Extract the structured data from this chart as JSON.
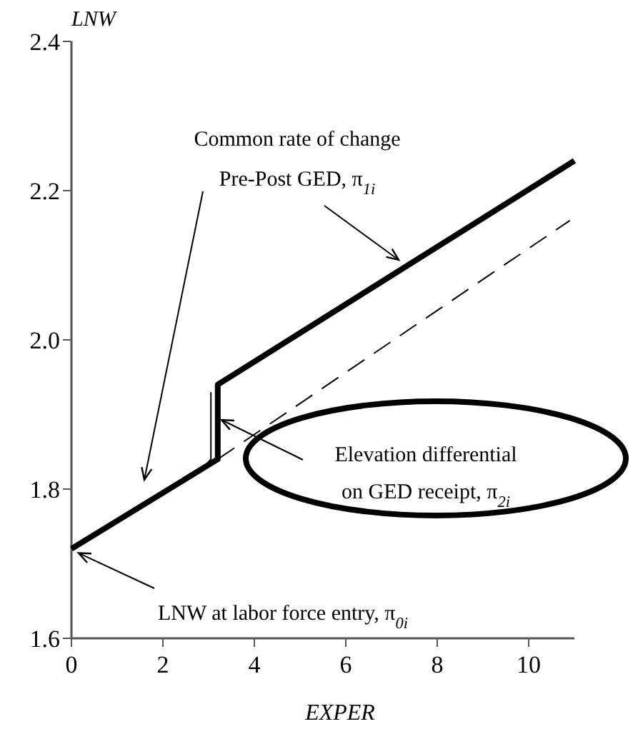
{
  "chart_data": {
    "type": "line",
    "xlabel": "EXPER",
    "ylabel": "LNW",
    "xlim": [
      0,
      11
    ],
    "ylim": [
      1.6,
      2.4
    ],
    "xticks": [
      0,
      2,
      4,
      6,
      8,
      10
    ],
    "yticks": [
      1.6,
      1.8,
      {
        "value": 2.0,
        "label": "2.0"
      },
      2.2,
      2.4
    ],
    "grid": false,
    "marker": "none",
    "series": [
      {
        "color": "#000000",
        "x": [
          0,
          3.2,
          3.2,
          11
        ],
        "values": [
          1.72,
          1.84,
          1.94,
          2.24
        ]
      },
      {
        "color": "#000000",
        "x": [
          2.9,
          3.05,
          3.05
        ],
        "values": [
          1.83,
          1.84,
          1.93
        ]
      },
      {
        "color": "#000000",
        "line_style": "dashed",
        "x": [
          3.2,
          10.9
        ],
        "values": [
          1.84,
          2.16
        ]
      }
    ],
    "annotations": [
      "Common rate of change",
      "Pre-Post GED, π$_{1i}$",
      "Elevation differential",
      "on GED receipt, π$_{2i}$",
      {
        "text": "LNW at labor force entry, π$_{0i}$",
        "x": 0,
        "y": 1.72
      }
    ]
  }
}
